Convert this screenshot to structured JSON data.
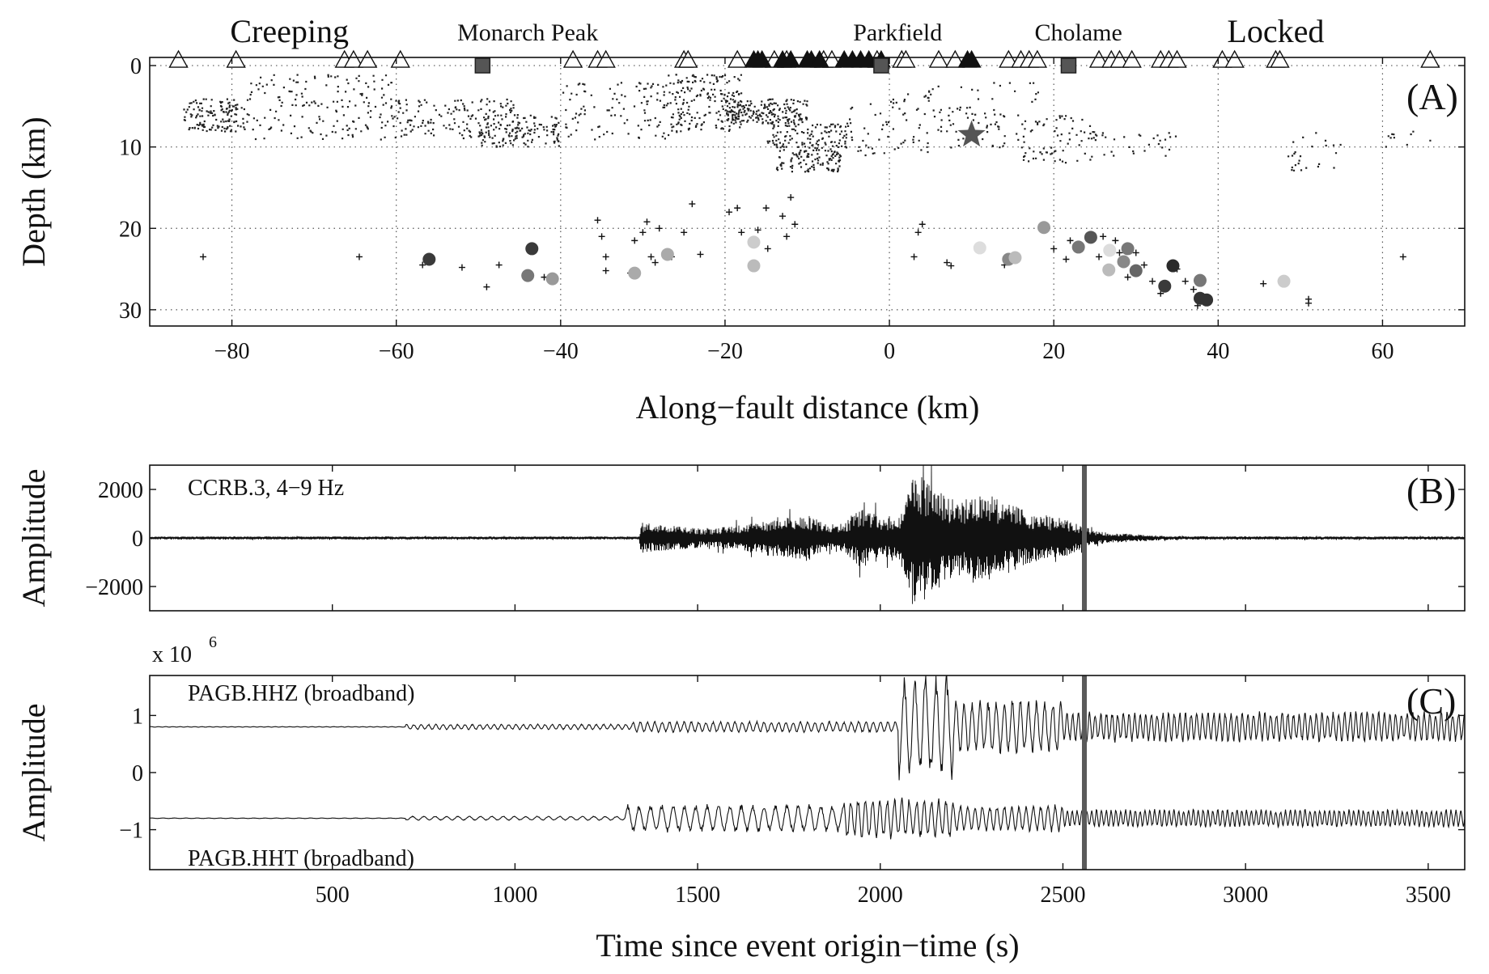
{
  "chart_data": [
    {
      "panel": "(A)",
      "type": "scatter",
      "xlabel": "Along−fault distance (km)",
      "ylabel": "Depth (km)",
      "xlim": [
        -90,
        70
      ],
      "ylim": [
        32,
        -1
      ],
      "y_inverted": true,
      "xticks": [
        -80,
        -60,
        -40,
        -20,
        0,
        20,
        40,
        60
      ],
      "yticks": [
        0,
        10,
        20,
        30
      ],
      "grid": "dotted",
      "region_labels": [
        {
          "text": "Creeping",
          "x": -73
        },
        {
          "text": "Monarch Peak",
          "x": -44
        },
        {
          "text": "Parkfield",
          "x": 1
        },
        {
          "text": "Cholame",
          "x": 23
        },
        {
          "text": "Locked",
          "x": 47
        }
      ],
      "stations_open": [
        -86.5,
        -79.5,
        -66.3,
        -65.2,
        -63.5,
        -59.5,
        -38.5,
        -35.5,
        -34.5,
        -25,
        -24.5,
        -18.5,
        -14,
        -12.5,
        -8,
        -7,
        -1.5,
        1.5,
        2,
        6,
        8,
        14.5,
        16,
        17,
        18,
        25.5,
        27,
        28,
        29.5,
        33,
        34,
        35,
        40.5,
        42,
        47,
        47.5,
        65.8
      ],
      "stations_filled": [
        -16.5,
        -16,
        -15.5,
        -13,
        -12,
        -10,
        -9.5,
        -8.5,
        -5.5,
        -4.5,
        -3.5,
        -2.5,
        -1,
        9.5,
        10
      ],
      "stations_square": [
        -49.5,
        -1,
        21.8
      ],
      "mainshock_star": {
        "x": 10,
        "y": 8.5
      },
      "tremor_circles": [
        {
          "x": -56,
          "y": 23.8,
          "shade": "#3a3a3a"
        },
        {
          "x": -44,
          "y": 25.8,
          "shade": "#777777"
        },
        {
          "x": -43.5,
          "y": 22.5,
          "shade": "#3a3a3a"
        },
        {
          "x": -41,
          "y": 26.2,
          "shade": "#999999"
        },
        {
          "x": -31,
          "y": 25.5,
          "shade": "#aaaaaa"
        },
        {
          "x": -27,
          "y": 23.2,
          "shade": "#aaaaaa"
        },
        {
          "x": -16.5,
          "y": 24.6,
          "shade": "#bbbbbb"
        },
        {
          "x": -16.5,
          "y": 21.7,
          "shade": "#cccccc"
        },
        {
          "x": 11,
          "y": 22.4,
          "shade": "#dddddd"
        },
        {
          "x": 14.5,
          "y": 23.8,
          "shade": "#888888"
        },
        {
          "x": 15.3,
          "y": 23.6,
          "shade": "#bbbbbb"
        },
        {
          "x": 18.8,
          "y": 19.9,
          "shade": "#999999"
        },
        {
          "x": 23,
          "y": 22.3,
          "shade": "#777777"
        },
        {
          "x": 24.5,
          "y": 21.1,
          "shade": "#555555"
        },
        {
          "x": 26.8,
          "y": 22.7,
          "shade": "#dddddd"
        },
        {
          "x": 26.7,
          "y": 25.1,
          "shade": "#bbbbbb"
        },
        {
          "x": 28.5,
          "y": 24.1,
          "shade": "#888888"
        },
        {
          "x": 29,
          "y": 22.5,
          "shade": "#777777"
        },
        {
          "x": 30,
          "y": 25.2,
          "shade": "#666666"
        },
        {
          "x": 33.5,
          "y": 27.1,
          "shade": "#3a3a3a"
        },
        {
          "x": 34.5,
          "y": 24.6,
          "shade": "#2a2a2a"
        },
        {
          "x": 37.8,
          "y": 26.4,
          "shade": "#777777"
        },
        {
          "x": 37.8,
          "y": 28.6,
          "shade": "#333333"
        },
        {
          "x": 38.6,
          "y": 28.8,
          "shade": "#333333"
        },
        {
          "x": 48,
          "y": 26.5,
          "shade": "#cccccc"
        }
      ],
      "tremor_crosses": [
        [
          -83.5,
          23.5
        ],
        [
          -64.5,
          23.5
        ],
        [
          -56.8,
          24.5
        ],
        [
          -52,
          24.8
        ],
        [
          -49,
          27.2
        ],
        [
          -47.5,
          24.5
        ],
        [
          -42,
          26
        ],
        [
          -35.5,
          19
        ],
        [
          -35,
          21
        ],
        [
          -34.5,
          23.5
        ],
        [
          -34.5,
          25.2
        ],
        [
          -31.5,
          25.5
        ],
        [
          -31,
          21.5
        ],
        [
          -30,
          20.5
        ],
        [
          -29.5,
          19.2
        ],
        [
          -29,
          23.5
        ],
        [
          -28.5,
          24.2
        ],
        [
          -28,
          20
        ],
        [
          -26.5,
          23.5
        ],
        [
          -25,
          20.5
        ],
        [
          -24,
          17
        ],
        [
          -23,
          23.2
        ],
        [
          -19.5,
          18
        ],
        [
          -18.5,
          17.5
        ],
        [
          -18,
          20.5
        ],
        [
          -16,
          20.2
        ],
        [
          -15,
          17.5
        ],
        [
          -14.8,
          22.5
        ],
        [
          -13,
          18.5
        ],
        [
          -12.5,
          21
        ],
        [
          -12,
          16.2
        ],
        [
          -11.5,
          19.5
        ],
        [
          3,
          23.5
        ],
        [
          3.5,
          20.5
        ],
        [
          4,
          19.5
        ],
        [
          7,
          24.2
        ],
        [
          7.5,
          24.6
        ],
        [
          14,
          24.5
        ],
        [
          15,
          23.3
        ],
        [
          20,
          22.5
        ],
        [
          21.5,
          23.8
        ],
        [
          22,
          21.5
        ],
        [
          25.5,
          23.5
        ],
        [
          26,
          21
        ],
        [
          27.5,
          21.5
        ],
        [
          28,
          23
        ],
        [
          29,
          26
        ],
        [
          30,
          23
        ],
        [
          31,
          24.5
        ],
        [
          32,
          26.5
        ],
        [
          33,
          28
        ],
        [
          35,
          25
        ],
        [
          36,
          26.5
        ],
        [
          37,
          27.5
        ],
        [
          37.5,
          29.5
        ],
        [
          45.5,
          26.8
        ],
        [
          51,
          28.7
        ],
        [
          51,
          29.2
        ],
        [
          62.5,
          23.5
        ]
      ]
    },
    {
      "panel": "(B)",
      "type": "line",
      "series": [
        {
          "name": "CCRB.3, 4−9 Hz"
        }
      ],
      "ylabel": "Amplitude",
      "xlim": [
        0,
        3600
      ],
      "ylim": [
        -3000,
        3000
      ],
      "yticks": [
        -2000,
        0,
        2000
      ],
      "marker_line_x": 2550,
      "envelope": [
        [
          0,
          60
        ],
        [
          1340,
          60
        ],
        [
          1345,
          650
        ],
        [
          1400,
          550
        ],
        [
          1520,
          380
        ],
        [
          1600,
          500
        ],
        [
          1700,
          750
        ],
        [
          1800,
          950
        ],
        [
          1850,
          600
        ],
        [
          1900,
          600
        ],
        [
          1950,
          1300
        ],
        [
          2000,
          900
        ],
        [
          2050,
          900
        ],
        [
          2100,
          2900
        ],
        [
          2150,
          2000
        ],
        [
          2200,
          1600
        ],
        [
          2300,
          1800
        ],
        [
          2400,
          1100
        ],
        [
          2500,
          800
        ],
        [
          2550,
          500
        ],
        [
          2600,
          250
        ],
        [
          2700,
          150
        ],
        [
          2800,
          70
        ],
        [
          3600,
          60
        ]
      ]
    },
    {
      "panel": "(C)",
      "type": "line",
      "series": [
        {
          "name": "PAGB.HHZ (broadband)",
          "offset": 0.8
        },
        {
          "name": "PAGB.HHT (broadband)",
          "offset": -0.8
        }
      ],
      "ylabel": "Amplitude",
      "scale_label": "x 10",
      "scale_exponent": "6",
      "xlabel": "Time since event origin−time (s)",
      "xlim": [
        0,
        3600
      ],
      "ylim": [
        -1.7,
        1.7
      ],
      "yticks": [
        -1,
        0,
        1
      ],
      "xticks": [
        500,
        1000,
        1500,
        2000,
        2500,
        3000,
        3500
      ],
      "marker_line_x": 2550
    }
  ]
}
